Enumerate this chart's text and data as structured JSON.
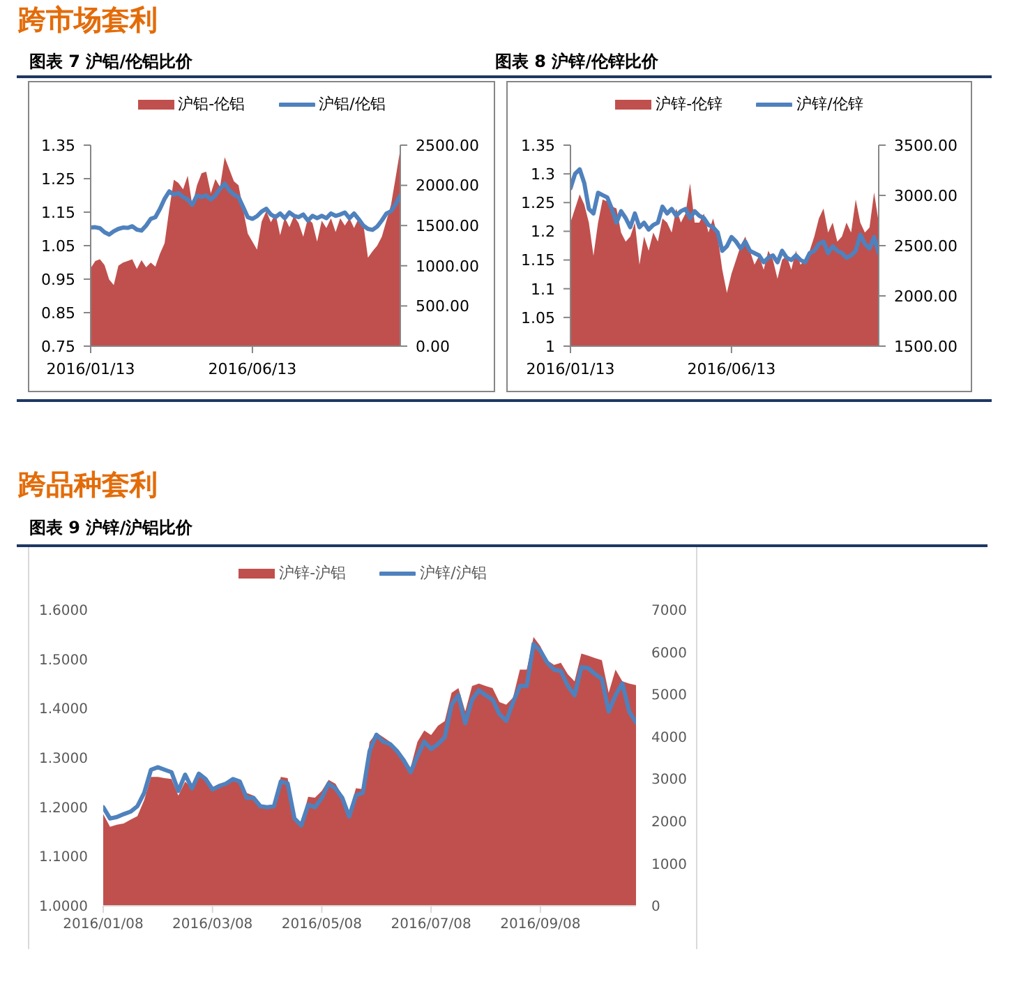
{
  "chart_data": [
    {
      "type": "line",
      "title": "跨市场套利",
      "subtitle": "图表 7 沪铝/伦铝比价",
      "legend": "top",
      "categories": [
        "2016/01/13",
        null,
        null,
        null,
        null,
        null,
        null,
        null,
        null,
        null,
        null,
        null,
        null,
        null,
        null,
        null,
        null,
        null,
        null,
        null,
        null,
        null,
        null,
        null,
        null,
        null,
        null,
        null,
        null,
        null,
        null,
        null,
        null,
        null,
        null,
        "2016/06/13",
        null,
        null,
        null,
        null,
        null,
        null,
        null,
        null,
        null,
        null,
        null,
        null,
        null,
        null,
        null,
        null,
        null,
        null,
        null,
        null,
        null,
        null,
        null,
        null,
        null,
        null,
        null,
        null,
        null,
        null,
        null,
        null
      ],
      "series": [
        {
          "name": "沪铝-伦铝",
          "type": "area",
          "axis": "y2",
          "color": "#c0504d",
          "values": [
            970,
            1060,
            1080,
            1010,
            830,
            760,
            1000,
            1040,
            1060,
            1080,
            960,
            1070,
            980,
            1040,
            990,
            1150,
            1280,
            1700,
            2070,
            2030,
            1950,
            2120,
            1750,
            2000,
            2150,
            2170,
            1900,
            2080,
            1980,
            2350,
            2200,
            2050,
            2000,
            1700,
            1400,
            1300,
            1200,
            1550,
            1680,
            1540,
            1650,
            1380,
            1600,
            1480,
            1620,
            1530,
            1360,
            1590,
            1530,
            1300,
            1560,
            1470,
            1590,
            1420,
            1590,
            1500,
            1590,
            1470,
            1590,
            1520,
            1100,
            1180,
            1250,
            1360,
            1560,
            1760,
            2100,
            2450
          ]
        },
        {
          "name": "沪铝/伦铝",
          "color": "#4f81bd",
          "values": [
            1.104,
            1.105,
            1.102,
            1.09,
            1.083,
            1.093,
            1.1,
            1.104,
            1.103,
            1.108,
            1.098,
            1.095,
            1.11,
            1.13,
            1.135,
            1.16,
            1.19,
            1.212,
            1.202,
            1.207,
            1.195,
            1.188,
            1.172,
            1.2,
            1.195,
            1.2,
            1.188,
            1.2,
            1.22,
            1.235,
            1.215,
            1.202,
            1.195,
            1.165,
            1.135,
            1.13,
            1.138,
            1.152,
            1.16,
            1.143,
            1.135,
            1.146,
            1.132,
            1.149,
            1.139,
            1.135,
            1.143,
            1.125,
            1.139,
            1.132,
            1.139,
            1.132,
            1.146,
            1.139,
            1.143,
            1.149,
            1.132,
            1.146,
            1.129,
            1.11,
            1.1,
            1.097,
            1.107,
            1.125,
            1.146,
            1.153,
            1.174,
            1.2
          ]
        }
      ],
      "ylim": [
        0.75,
        1.35
      ],
      "yticks": [
        0.75,
        0.85,
        0.95,
        1.05,
        1.15,
        1.25,
        1.35
      ],
      "y2lim": [
        0,
        2500
      ],
      "y2ticks": [
        {
          "value": 0,
          "label": "0.00"
        },
        {
          "value": 500,
          "label": "500.00"
        },
        {
          "value": 1000,
          "label": "1000.00"
        },
        {
          "value": 1500,
          "label": "1500.00"
        },
        {
          "value": 2000,
          "label": "2000.00"
        },
        {
          "value": 2500,
          "label": "2500.00"
        }
      ]
    },
    {
      "type": "line",
      "title": "图表 8 沪锌/伦锌比价",
      "legend": "top",
      "categories": [
        "2016/01/13",
        null,
        null,
        null,
        null,
        null,
        null,
        null,
        null,
        null,
        null,
        null,
        null,
        null,
        null,
        null,
        null,
        null,
        null,
        null,
        null,
        null,
        null,
        null,
        null,
        null,
        null,
        null,
        null,
        null,
        null,
        null,
        null,
        null,
        null,
        "2016/06/13",
        null,
        null,
        null,
        null,
        null,
        null,
        null,
        null,
        null,
        null,
        null,
        null,
        null,
        null,
        null,
        null,
        null,
        null,
        null,
        null,
        null,
        null,
        null,
        null,
        null,
        null,
        null,
        null,
        null,
        null,
        null,
        null
      ],
      "series": [
        {
          "name": "沪锌-伦锌",
          "type": "area",
          "axis": "y2",
          "color": "#c0504d",
          "values": [
            2730,
            2870,
            3010,
            2910,
            2730,
            2400,
            2730,
            2960,
            2940,
            2890,
            2870,
            2630,
            2540,
            2590,
            2730,
            2310,
            2590,
            2450,
            2630,
            2540,
            2770,
            2730,
            2630,
            2870,
            2730,
            2820,
            3120,
            2730,
            2730,
            2820,
            2630,
            2770,
            2590,
            2260,
            2030,
            2220,
            2360,
            2500,
            2590,
            2450,
            2310,
            2400,
            2260,
            2450,
            2360,
            2170,
            2360,
            2400,
            2260,
            2450,
            2310,
            2360,
            2450,
            2590,
            2770,
            2870,
            2630,
            2730,
            2540,
            2590,
            2730,
            2630,
            2960,
            2730,
            2630,
            2680,
            3030,
            2730
          ]
        },
        {
          "name": "沪锌/伦锌",
          "color": "#4f81bd",
          "values": [
            1.275,
            1.3,
            1.308,
            1.284,
            1.239,
            1.231,
            1.267,
            1.263,
            1.259,
            1.239,
            1.215,
            1.235,
            1.223,
            1.207,
            1.231,
            1.207,
            1.215,
            1.203,
            1.211,
            1.215,
            1.243,
            1.231,
            1.239,
            1.227,
            1.235,
            1.239,
            1.223,
            1.235,
            1.227,
            1.223,
            1.211,
            1.207,
            1.198,
            1.166,
            1.174,
            1.19,
            1.182,
            1.17,
            1.182,
            1.166,
            1.162,
            1.158,
            1.146,
            1.154,
            1.158,
            1.146,
            1.166,
            1.154,
            1.15,
            1.158,
            1.15,
            1.146,
            1.162,
            1.166,
            1.178,
            1.182,
            1.162,
            1.174,
            1.166,
            1.162,
            1.154,
            1.158,
            1.166,
            1.194,
            1.178,
            1.17,
            1.19,
            1.162
          ]
        }
      ],
      "ylim": [
        1,
        1.35
      ],
      "yticks": [
        1,
        1.05,
        1.1,
        1.15,
        1.2,
        1.25,
        1.3,
        1.35
      ],
      "y2lim": [
        1500,
        3500
      ],
      "y2ticks": [
        {
          "value": 1500,
          "label": "1500.00"
        },
        {
          "value": 2000,
          "label": "2000.00"
        },
        {
          "value": 2500,
          "label": "2500.00"
        },
        {
          "value": 3000,
          "label": "3000.00"
        },
        {
          "value": 3500,
          "label": "3500.00"
        }
      ]
    },
    {
      "type": "line",
      "title": "跨品种套利",
      "subtitle": "图表 9 沪锌/沪铝比价",
      "legend": "top",
      "categories": [
        "2016/01/08",
        null,
        null,
        null,
        null,
        null,
        null,
        null,
        null,
        null,
        null,
        null,
        null,
        null,
        null,
        null,
        "2016/03/08",
        null,
        null,
        null,
        null,
        null,
        null,
        null,
        null,
        null,
        null,
        null,
        null,
        null,
        null,
        null,
        "2016/05/08",
        null,
        null,
        null,
        null,
        null,
        null,
        null,
        null,
        null,
        null,
        null,
        null,
        null,
        null,
        null,
        "2016/07/08",
        null,
        null,
        null,
        null,
        null,
        null,
        null,
        null,
        null,
        null,
        null,
        null,
        null,
        null,
        null,
        "2016/09/08",
        null,
        null,
        null,
        null,
        null,
        null,
        null,
        null,
        null,
        null,
        null,
        null,
        null,
        null
      ],
      "series": [
        {
          "name": "沪锌-沪铝",
          "type": "area",
          "axis": "y2",
          "color": "#c0504d",
          "values": [
            2170,
            1870,
            1920,
            1950,
            2040,
            2120,
            2500,
            3050,
            3050,
            3020,
            3000,
            2610,
            2940,
            2780,
            3050,
            3050,
            2780,
            2890,
            2910,
            3000,
            2940,
            2670,
            2610,
            2390,
            2360,
            2390,
            3050,
            3020,
            2120,
            1950,
            2580,
            2560,
            2720,
            2980,
            2890,
            2610,
            2230,
            2780,
            2760,
            3880,
            4100,
            3990,
            3880,
            3660,
            3490,
            3270,
            3880,
            4150,
            4040,
            4260,
            4370,
            5040,
            5150,
            4600,
            5200,
            5260,
            5200,
            5150,
            4820,
            4760,
            4930,
            5590,
            5590,
            6360,
            6140,
            5810,
            5700,
            5750,
            5480,
            5310,
            5970,
            5920,
            5860,
            5810,
            5040,
            5590,
            5310,
            5260,
            5220
          ]
        },
        {
          "name": "沪锌/沪铝",
          "color": "#4f81bd",
          "values": [
            1.2,
            1.177,
            1.18,
            1.186,
            1.191,
            1.202,
            1.229,
            1.276,
            1.281,
            1.276,
            1.271,
            1.233,
            1.266,
            1.238,
            1.268,
            1.257,
            1.236,
            1.243,
            1.248,
            1.257,
            1.252,
            1.219,
            1.219,
            1.202,
            1.2,
            1.202,
            1.252,
            1.248,
            1.177,
            1.163,
            1.205,
            1.2,
            1.219,
            1.248,
            1.238,
            1.219,
            1.181,
            1.224,
            1.229,
            1.314,
            1.347,
            1.333,
            1.328,
            1.314,
            1.295,
            1.271,
            1.304,
            1.333,
            1.318,
            1.328,
            1.342,
            1.408,
            1.427,
            1.37,
            1.418,
            1.437,
            1.427,
            1.418,
            1.389,
            1.375,
            1.413,
            1.446,
            1.446,
            1.531,
            1.517,
            1.493,
            1.479,
            1.476,
            1.446,
            1.427,
            1.484,
            1.482,
            1.47,
            1.46,
            1.394,
            1.427,
            1.451,
            1.394,
            1.372
          ]
        }
      ],
      "ylim": [
        1,
        1.6
      ],
      "yticks": [
        {
          "value": 1,
          "label": "1.0000"
        },
        {
          "value": 1.1,
          "label": "1.1000"
        },
        {
          "value": 1.2,
          "label": "1.2000"
        },
        {
          "value": 1.3,
          "label": "1.3000"
        },
        {
          "value": 1.4,
          "label": "1.4000"
        },
        {
          "value": 1.5,
          "label": "1.5000"
        },
        {
          "value": 1.6,
          "label": "1.6000"
        }
      ],
      "y2lim": [
        0,
        7000
      ],
      "y2ticks": [
        0,
        1000,
        2000,
        3000,
        4000,
        5000,
        6000,
        7000
      ]
    }
  ]
}
